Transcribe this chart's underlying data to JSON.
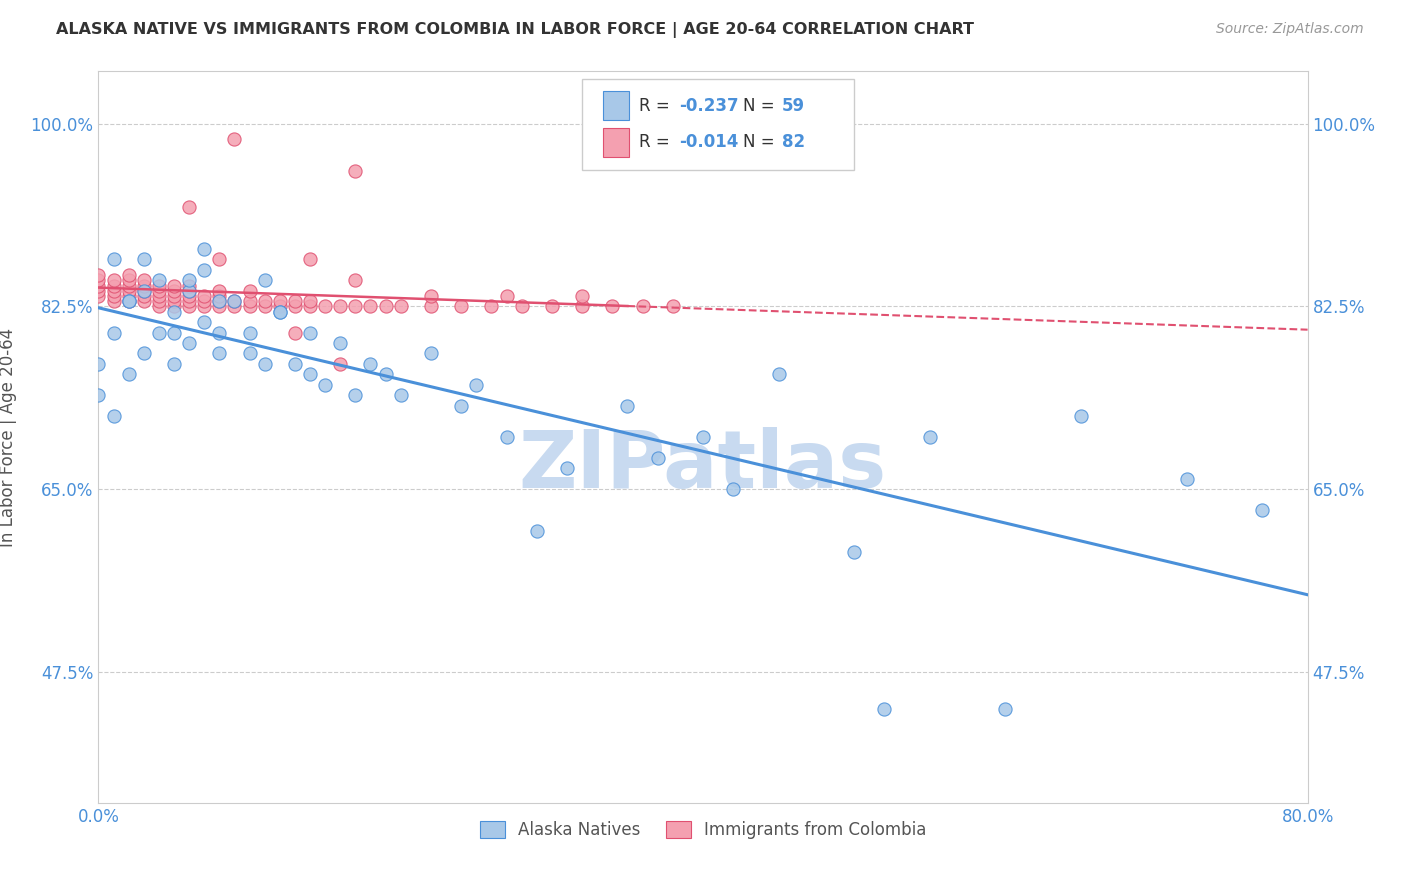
{
  "title": "ALASKA NATIVE VS IMMIGRANTS FROM COLOMBIA IN LABOR FORCE | AGE 20-64 CORRELATION CHART",
  "source": "Source: ZipAtlas.com",
  "ylabel": "In Labor Force | Age 20-64",
  "xlim": [
    0.0,
    0.8
  ],
  "ylim": [
    0.35,
    1.05
  ],
  "yticks": [
    0.475,
    0.65,
    0.825,
    1.0
  ],
  "ytick_labels": [
    "47.5%",
    "65.0%",
    "82.5%",
    "100.0%"
  ],
  "xtick_labels": [
    "0.0%",
    "80.0%"
  ],
  "xticks": [
    0.0,
    0.8
  ],
  "r_blue": -0.237,
  "n_blue": 59,
  "r_pink": -0.014,
  "n_pink": 82,
  "watermark": "ZIPatlas",
  "blue_scatter_x": [
    0.01,
    0.01,
    0.02,
    0.02,
    0.03,
    0.03,
    0.04,
    0.04,
    0.05,
    0.05,
    0.06,
    0.06,
    0.07,
    0.07,
    0.08,
    0.08,
    0.09,
    0.1,
    0.11,
    0.11,
    0.12,
    0.13,
    0.14,
    0.15,
    0.16,
    0.17,
    0.18,
    0.19,
    0.2,
    0.22,
    0.24,
    0.25,
    0.27,
    0.29,
    0.31,
    0.35,
    0.37,
    0.4,
    0.42,
    0.45,
    0.5,
    0.52,
    0.55,
    0.6,
    0.65,
    0.72,
    0.77,
    0.0,
    0.0,
    0.01,
    0.02,
    0.03,
    0.05,
    0.06,
    0.07,
    0.08,
    0.1,
    0.12,
    0.14
  ],
  "blue_scatter_y": [
    0.87,
    0.8,
    0.83,
    0.76,
    0.84,
    0.78,
    0.85,
    0.8,
    0.82,
    0.77,
    0.84,
    0.79,
    0.86,
    0.81,
    0.83,
    0.78,
    0.83,
    0.8,
    0.85,
    0.77,
    0.82,
    0.77,
    0.8,
    0.75,
    0.79,
    0.74,
    0.77,
    0.76,
    0.74,
    0.78,
    0.73,
    0.75,
    0.7,
    0.61,
    0.67,
    0.73,
    0.68,
    0.7,
    0.65,
    0.76,
    0.59,
    0.44,
    0.7,
    0.44,
    0.72,
    0.66,
    0.63,
    0.74,
    0.77,
    0.72,
    0.83,
    0.87,
    0.8,
    0.85,
    0.88,
    0.8,
    0.78,
    0.82,
    0.76
  ],
  "pink_scatter_x": [
    0.0,
    0.0,
    0.0,
    0.0,
    0.0,
    0.01,
    0.01,
    0.01,
    0.01,
    0.01,
    0.02,
    0.02,
    0.02,
    0.02,
    0.02,
    0.02,
    0.03,
    0.03,
    0.03,
    0.03,
    0.03,
    0.04,
    0.04,
    0.04,
    0.04,
    0.04,
    0.05,
    0.05,
    0.05,
    0.05,
    0.05,
    0.06,
    0.06,
    0.06,
    0.06,
    0.06,
    0.07,
    0.07,
    0.07,
    0.08,
    0.08,
    0.08,
    0.08,
    0.09,
    0.09,
    0.1,
    0.1,
    0.11,
    0.11,
    0.12,
    0.12,
    0.13,
    0.13,
    0.14,
    0.14,
    0.15,
    0.16,
    0.17,
    0.18,
    0.19,
    0.2,
    0.22,
    0.24,
    0.26,
    0.28,
    0.3,
    0.32,
    0.34,
    0.36,
    0.38,
    0.06,
    0.08,
    0.1,
    0.13,
    0.16,
    0.17,
    0.17,
    0.09,
    0.14,
    0.22,
    0.27,
    0.32
  ],
  "pink_scatter_y": [
    0.835,
    0.84,
    0.845,
    0.85,
    0.855,
    0.83,
    0.835,
    0.84,
    0.845,
    0.85,
    0.83,
    0.835,
    0.84,
    0.845,
    0.85,
    0.855,
    0.83,
    0.835,
    0.84,
    0.845,
    0.85,
    0.825,
    0.83,
    0.835,
    0.84,
    0.845,
    0.825,
    0.83,
    0.835,
    0.84,
    0.845,
    0.825,
    0.83,
    0.835,
    0.84,
    0.845,
    0.825,
    0.83,
    0.835,
    0.825,
    0.83,
    0.835,
    0.84,
    0.825,
    0.83,
    0.825,
    0.83,
    0.825,
    0.83,
    0.825,
    0.83,
    0.825,
    0.83,
    0.825,
    0.83,
    0.825,
    0.825,
    0.825,
    0.825,
    0.825,
    0.825,
    0.825,
    0.825,
    0.825,
    0.825,
    0.825,
    0.825,
    0.825,
    0.825,
    0.825,
    0.92,
    0.87,
    0.84,
    0.8,
    0.77,
    0.85,
    0.955,
    0.985,
    0.87,
    0.835,
    0.835,
    0.835
  ],
  "blue_color": "#a8c8e8",
  "pink_color": "#f4a0b0",
  "blue_line_color": "#4a90d9",
  "pink_line_color": "#e05070",
  "grid_color": "#cccccc",
  "bg_color": "#ffffff",
  "title_color": "#333333",
  "axis_label_color": "#555555",
  "tick_color": "#4a90d9",
  "watermark_color": "#c8daf0"
}
